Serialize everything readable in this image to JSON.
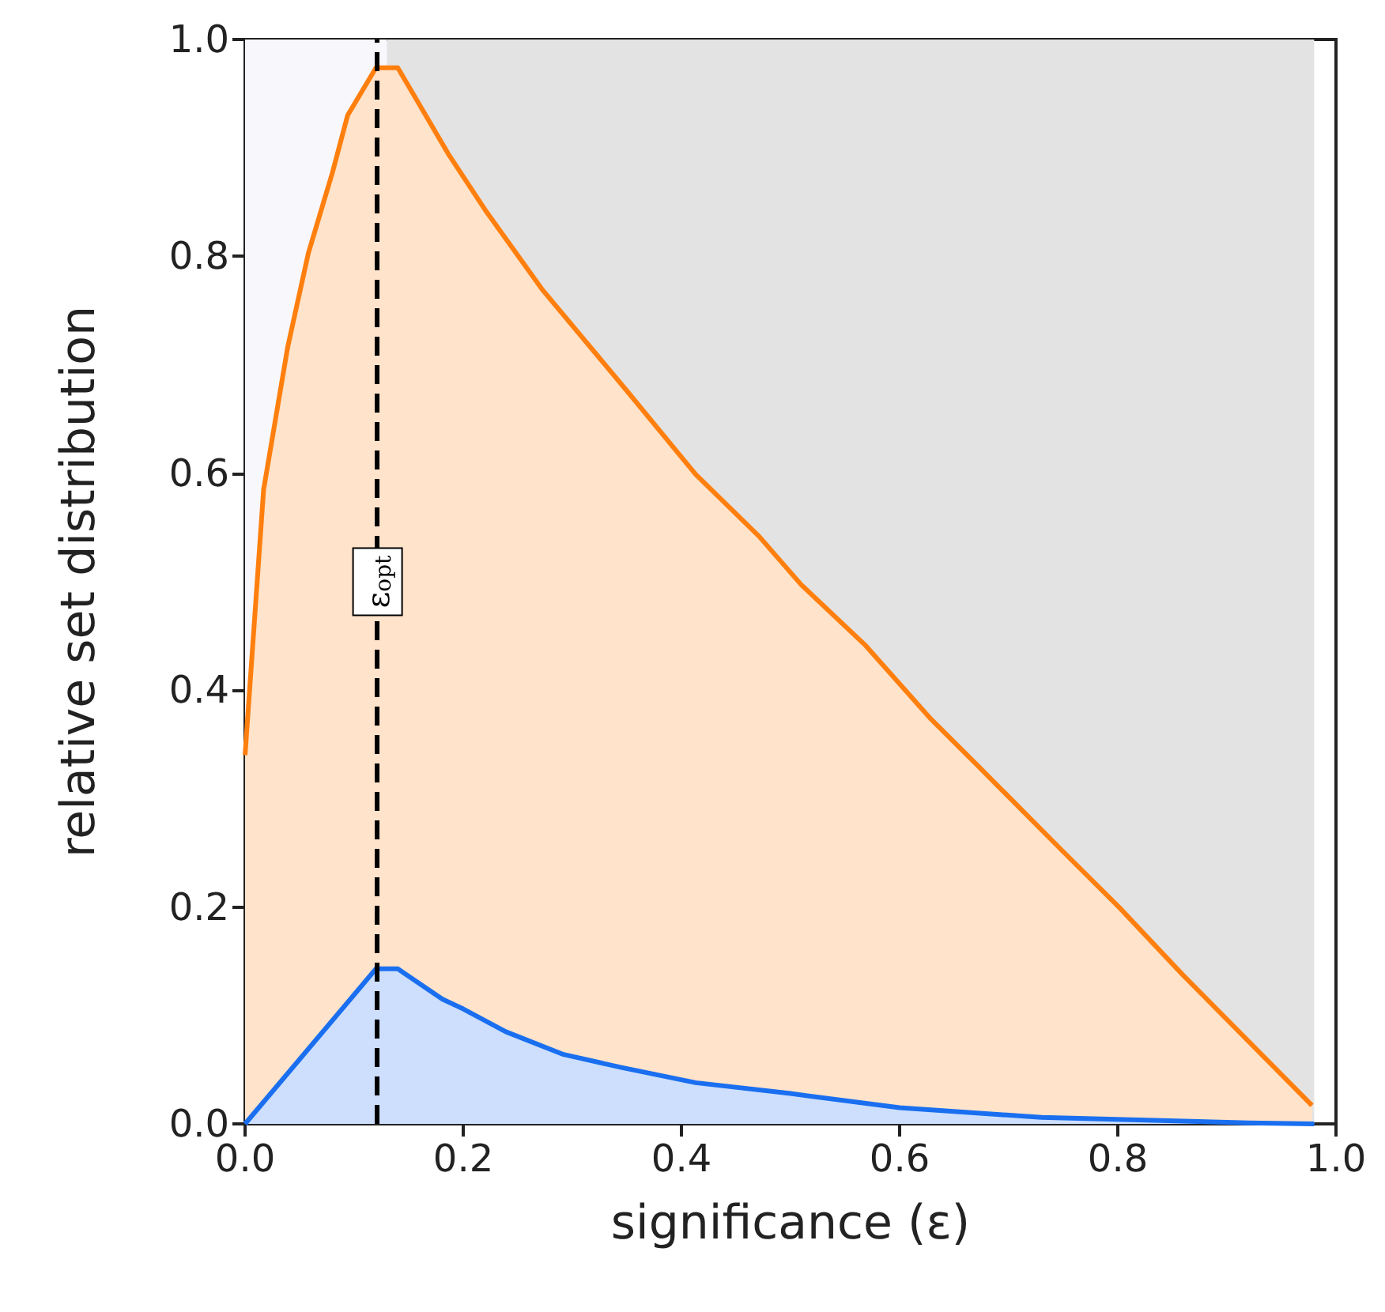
{
  "chart_data": {
    "type": "area",
    "xlabel": "significance (ε)",
    "ylabel": "relative set distribution",
    "xlim": [
      0,
      1
    ],
    "ylim": [
      0,
      1
    ],
    "xticks": [
      {
        "value": 0,
        "label": "0.0"
      },
      0.2,
      0.4,
      0.6,
      0.8,
      {
        "value": 1,
        "label": "1.0"
      }
    ],
    "yticks": [
      {
        "value": 0,
        "label": "0.0"
      },
      0.2,
      0.4,
      0.6,
      0.8,
      {
        "value": 1,
        "label": "1.0"
      }
    ],
    "grid": false,
    "series": [
      {
        "color": "#ff7f0e",
        "x": [
          0,
          0.017,
          0.039,
          0.058,
          0.08,
          0.094,
          0.12,
          0.14,
          0.186,
          0.22,
          0.272,
          0.35,
          0.413,
          0.471,
          0.51,
          0.568,
          0.629,
          0.671,
          0.749,
          0.801,
          0.859,
          0.978
        ],
        "values": [
          0.34,
          0.585,
          0.716,
          0.803,
          0.877,
          0.93,
          0.974,
          0.974,
          0.895,
          0.843,
          0.77,
          0.676,
          0.599,
          0.542,
          0.497,
          0.442,
          0.373,
          0.331,
          0.252,
          0.2,
          0.138,
          0.017
        ]
      },
      {
        "color": "#1a6ff0",
        "x": [
          0,
          0.12,
          0.14,
          0.181,
          0.2,
          0.239,
          0.292,
          0.345,
          0.413,
          0.5,
          0.6,
          0.73,
          0.92,
          0.98
        ],
        "values": [
          0,
          0.143,
          0.143,
          0.115,
          0.106,
          0.085,
          0.064,
          0.052,
          0.038,
          0.028,
          0.015,
          0.006,
          0.001,
          0
        ]
      }
    ],
    "bands": [
      {
        "axis": "x",
        "from": 0,
        "to": 0.13,
        "color": "#f7f7fc"
      },
      {
        "axis": "x",
        "from": 0.13,
        "to": 0.98,
        "color": "#e3e3e3"
      }
    ],
    "ref_lines": [
      {
        "axis": "x",
        "value": 0.12,
        "label": "ε$_{opt}$",
        "color": "#000000",
        "line_style": "dashed"
      }
    ]
  }
}
